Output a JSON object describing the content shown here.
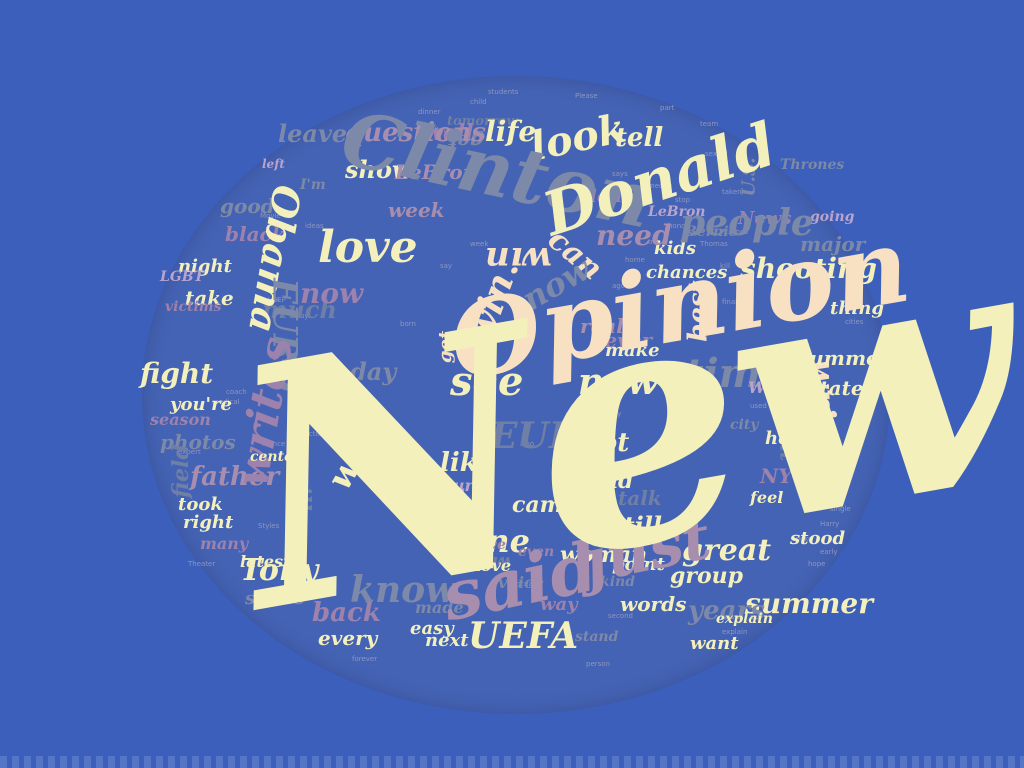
{
  "cloud": {
    "words": {
      "new_big": "New",
      "opinion": "Opinion",
      "clinton": "Clinton",
      "donald": "Donald",
      "said": "said",
      "just": "just",
      "love": "love",
      "obama": "Obama",
      "people": "people",
      "time": "time",
      "know": "know",
      "see": "see",
      "new": "new",
      "one": "one",
      "will": "will",
      "like": "like",
      "questions": "questions",
      "look": "look",
      "uefa": "UEFA",
      "euro": "EURO",
      "writes": "writes",
      "tony": "Tony",
      "back": "back",
      "every": "every",
      "years": "years",
      "summer": "summer",
      "great": "great",
      "state": "State",
      "shooting": "shooting",
      "need": "need",
      "show": "show",
      "life": "life",
      "president": "president",
      "father": "father",
      "day": "day",
      "live": "live",
      "fight": "fight",
      "night": "night",
      "black": "black",
      "take": "take",
      "good": "good",
      "much": "much",
      "best": "best",
      "make": "make",
      "real": "real",
      "never": "never",
      "now": "now",
      "can": "can",
      "win": "win",
      "right": "right",
      "took": "took",
      "next": "next",
      "want": "want",
      "words": "words",
      "lot": "lot",
      "end": "end",
      "chances": "chances",
      "major": "major",
      "tell": "tell",
      "news": "News",
      "us": "U.S.",
      "nyt": "NYT",
      "woman": "woman",
      "still": "still",
      "thing": "thing",
      "help": "help",
      "white": "White",
      "kids": "kids",
      "group": "group",
      "point": "point",
      "even": "even",
      "came": "came",
      "youre": "you're",
      "season": "season",
      "photos": "photos",
      "well": "well",
      "someone": "someone",
      "taken": "taken",
      "lebron": "LeBron",
      "explain": "explain",
      "made": "made",
      "easy": "easy",
      "gave": "gave",
      "move": "move",
      "stood": "stood",
      "center": "center",
      "paul": "Paul",
      "culture": "culture",
      "leave": "leave",
      "lgbt": "LGBT",
      "victims": "victims",
      "series": "series",
      "many": "many",
      "latest": "latest",
      "thrones": "Thrones",
      "bernie": "Bernie",
      "going": "going",
      "long": "long",
      "left": "left",
      "says": "says",
      "feel": "feel",
      "city": "city",
      "field": "field",
      "voice": "voice",
      "way": "way",
      "kind": "kind",
      "stand": "stand",
      "ideas": "ideas",
      "dinner": "dinner",
      "often": "often",
      "team": "team",
      "child": "child",
      "students": "students",
      "please": "Please",
      "part": "part",
      "sexual": "sexual",
      "get": "get",
      "tomorrow": "tomorrow",
      "week": "week",
      "say": "say",
      "talk": "talk",
      "cities": "cities",
      "trip": "trip",
      "home": "home",
      "used": "used",
      "also": "also",
      "may": "may",
      "big": "big",
      "france": "France",
      "united": "United",
      "section": "Section",
      "early": "early",
      "single": "single",
      "comes": "comes",
      "kill": "kill",
      "hope": "hope",
      "harry": "Harry",
      "thomas": "Thomas",
      "movie": "Movie",
      "honor": "honor",
      "stop": "stop",
      "spoke": "spoke",
      "finally": "finally",
      "person": "person",
      "second": "second",
      "ocean": "ocean",
      "styles": "Styles",
      "forever": "forever",
      "army": "Army",
      "expert": "expert",
      "theater": "Theater",
      "medical": "medical",
      "coach": "coach",
      "born": "born",
      "ago": "ago",
      "veep": "VEEP",
      "im": "I'm"
    }
  }
}
